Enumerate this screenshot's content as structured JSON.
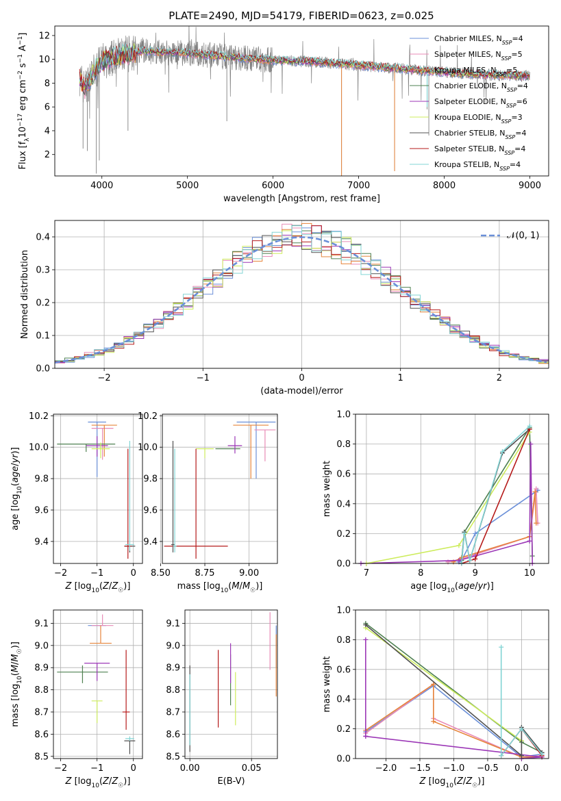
{
  "colors": {
    "Chabrier MILES": "#6a8fd8",
    "Salpeter MILES": "#e88ab6",
    "Kroupa MILES": "#e6843a",
    "Chabrier ELODIE": "#4e8050",
    "Salpeter ELODIE": "#9b36b6",
    "Kroupa ELODIE": "#cdec5c",
    "Chabrier STELIB": "#505050",
    "Salpeter STELIB": "#b51a1a",
    "Kroupa STELIB": "#82d4d4"
  },
  "chart_data": [
    {
      "id": "spectrum",
      "type": "line",
      "title": "PLATE=2490, MJD=54179, FIBERID=0623, z=0.025",
      "xlabel": "wavelength [Angstrom, rest frame]",
      "ylabel": "Flux [f_λ10^{-17} erg cm^{-2} s^{-1} A^{-1}]",
      "xlim": [
        3450,
        9220
      ],
      "ylim": [
        0.2,
        12.8
      ],
      "xticks": [
        4000,
        5000,
        6000,
        7000,
        8000,
        9000
      ],
      "yticks": [
        2,
        4,
        6,
        8,
        10,
        12
      ],
      "legend_position": "upper-right",
      "legend": [
        {
          "name": "Chabrier MILES",
          "label": "Chabrier MILES, N",
          "sub": "SSP",
          "suffix": "=4"
        },
        {
          "name": "Salpeter MILES",
          "label": "Salpeter MILES, N",
          "sub": "SSP",
          "suffix": "=5"
        },
        {
          "name": "Kroupa MILES",
          "label": "Kroupa MILES, N",
          "sub": "SSP",
          "suffix": "=5"
        },
        {
          "name": "Chabrier ELODIE",
          "label": "Chabrier ELODIE, N",
          "sub": "SSP",
          "suffix": "=4"
        },
        {
          "name": "Salpeter ELODIE",
          "label": "Salpeter ELODIE, N",
          "sub": "SSP",
          "suffix": "=6"
        },
        {
          "name": "Kroupa ELODIE",
          "label": "Kroupa ELODIE, N",
          "sub": "SSP",
          "suffix": "=3"
        },
        {
          "name": "Chabrier STELIB",
          "label": "Chabrier STELIB, N",
          "sub": "SSP",
          "suffix": "=4"
        },
        {
          "name": "Salpeter STELIB",
          "label": "Salpeter STELIB, N",
          "sub": "SSP",
          "suffix": "=4"
        },
        {
          "name": "Kroupa STELIB",
          "label": "Kroupa STELIB, N",
          "sub": "SSP",
          "suffix": "=4"
        }
      ],
      "continuum": [
        [
          3740,
          8.5
        ],
        [
          3800,
          7.5
        ],
        [
          3900,
          8.8
        ],
        [
          4000,
          9.8
        ],
        [
          4200,
          10.3
        ],
        [
          4500,
          10.7
        ],
        [
          5000,
          10.5
        ],
        [
          5500,
          10.2
        ],
        [
          6000,
          9.9
        ],
        [
          6500,
          9.8
        ],
        [
          7000,
          9.5
        ],
        [
          7500,
          9.2
        ],
        [
          8000,
          8.9
        ],
        [
          8500,
          8.7
        ],
        [
          9000,
          8.6
        ]
      ],
      "deep_features": [
        [
          3780,
          2.5
        ],
        [
          3830,
          2.3
        ],
        [
          3935,
          0.4
        ],
        [
          3970,
          1.5
        ],
        [
          4305,
          4.0
        ],
        [
          5460,
          4.8
        ],
        [
          6800,
          0.2
        ],
        [
          7420,
          0.6
        ],
        [
          7800,
          5.8
        ],
        [
          7820,
          3.6
        ]
      ]
    },
    {
      "id": "residuals",
      "type": "histogram",
      "xlabel": "(data-model)/error",
      "ylabel": "Normed distribution",
      "xlim": [
        -2.5,
        2.5
      ],
      "ylim": [
        0.0,
        0.45
      ],
      "xticks": [
        -2,
        -1,
        0,
        1,
        2
      ],
      "yticks": [
        0.0,
        0.1,
        0.2,
        0.3,
        0.4
      ],
      "bin_width": 0.1,
      "reference_curve": {
        "label": "𝒩(0, 1)",
        "mean": 0,
        "sigma": 1
      },
      "legend_position": "upper-right",
      "grid": true
    },
    {
      "id": "age-vs-Z",
      "type": "errorbar",
      "xlabel": "Z [log10(Z/Z☉)]",
      "ylabel": "age  [log10(age/yr)]",
      "xlim": [
        -2.2,
        0.25
      ],
      "ylim": [
        9.26,
        10.21
      ],
      "xticks": [
        -2,
        -1,
        0
      ],
      "yticks": [
        9.4,
        9.6,
        9.8,
        10.0,
        10.2
      ],
      "grid": true,
      "points": [
        {
          "series": "Chabrier MILES",
          "x": -1.0,
          "xerr": 0.25,
          "y": 10.16,
          "yerr_lo": 0.35,
          "yerr_hi": 0.0
        },
        {
          "series": "Salpeter MILES",
          "x": -0.85,
          "xerr": 0.3,
          "y": 10.12,
          "yerr_lo": 0.2,
          "yerr_hi": 0.0
        },
        {
          "series": "Kroupa MILES",
          "x": -0.8,
          "xerr": 0.35,
          "y": 10.14,
          "yerr_lo": 0.2,
          "yerr_hi": 0.0
        },
        {
          "series": "Chabrier ELODIE",
          "x": -1.3,
          "xerr": 0.8,
          "y": 10.02,
          "yerr_lo": 0.05,
          "yerr_hi": 0.0
        },
        {
          "series": "Salpeter ELODIE",
          "x": -1.0,
          "xerr": 0.3,
          "y": 10.01,
          "yerr_lo": 0.07,
          "yerr_hi": 0.06
        },
        {
          "series": "Kroupa ELODIE",
          "x": -0.9,
          "xerr": 0.25,
          "y": 9.99,
          "yerr_lo": 0.06,
          "yerr_hi": 0.04
        },
        {
          "series": "Chabrier STELIB",
          "x": -0.1,
          "xerr": 0.15,
          "y": 9.37,
          "yerr_lo": 0.04,
          "yerr_hi": 0.0
        },
        {
          "series": "Salpeter STELIB",
          "x": -0.15,
          "xerr": 0.1,
          "y": 9.37,
          "yerr_lo": 0.08,
          "yerr_hi": 0.62
        },
        {
          "series": "Kroupa STELIB",
          "x": -0.1,
          "xerr": 0.12,
          "y": 9.38,
          "yerr_lo": 0.04,
          "yerr_hi": 0.66
        }
      ]
    },
    {
      "id": "age-vs-mass",
      "type": "errorbar",
      "xlabel": "mass [log10(M/M☉)]",
      "ylabel": "",
      "xlim": [
        8.51,
        9.16
      ],
      "ylim": [
        9.26,
        10.21
      ],
      "xticks": [
        8.5,
        8.75,
        9.0
      ],
      "xticklabels": [
        "8.50",
        "8.75",
        "9.00"
      ],
      "yticks": [
        9.4,
        9.6,
        9.8,
        10.0,
        10.2
      ],
      "grid": true,
      "points": [
        {
          "series": "Chabrier MILES",
          "x": 9.04,
          "xerr": 0.11,
          "y": 10.16,
          "yerr_lo": 0.36,
          "yerr_hi": 0.0
        },
        {
          "series": "Salpeter MILES",
          "x": 9.09,
          "xerr": 0.06,
          "y": 10.11,
          "yerr_lo": 0.2,
          "yerr_hi": 0.0
        },
        {
          "series": "Kroupa MILES",
          "x": 9.01,
          "xerr": 0.1,
          "y": 10.14,
          "yerr_lo": 0.34,
          "yerr_hi": 0.0
        },
        {
          "series": "Chabrier ELODIE",
          "x": 8.88,
          "xerr": 0.07,
          "y": 9.99,
          "yerr_lo": 0.0,
          "yerr_hi": 0.0
        },
        {
          "series": "Salpeter ELODIE",
          "x": 8.92,
          "xerr": 0.04,
          "y": 10.01,
          "yerr_lo": 0.05,
          "yerr_hi": 0.06
        },
        {
          "series": "Kroupa ELODIE",
          "x": 8.75,
          "xerr": 0.05,
          "y": 9.99,
          "yerr_lo": 0.06,
          "yerr_hi": 0.0
        },
        {
          "series": "Chabrier STELIB",
          "x": 8.57,
          "xerr": 0.01,
          "y": 9.38,
          "yerr_lo": 0.05,
          "yerr_hi": 0.66
        },
        {
          "series": "Salpeter STELIB",
          "x": 8.7,
          "xerr": 0.18,
          "y": 9.37,
          "yerr_lo": 0.08,
          "yerr_hi": 0.62
        },
        {
          "series": "Kroupa STELIB",
          "x": 8.58,
          "xerr": 0.01,
          "y": 9.37,
          "yerr_lo": 0.04,
          "yerr_hi": 0.62
        }
      ]
    },
    {
      "id": "weight-vs-age",
      "type": "line",
      "xlabel": "age  [log10(age/yr)]",
      "ylabel": "mass weight",
      "xlim": [
        6.8,
        10.35
      ],
      "ylim": [
        0.0,
        1.0
      ],
      "xticks": [
        7,
        8,
        9,
        10
      ],
      "yticks": [
        0.0,
        0.2,
        0.4,
        0.6,
        0.8,
        1.0
      ],
      "grid": true,
      "series": [
        {
          "name": "Chabrier MILES",
          "points": [
            [
              8.7,
              0.01
            ],
            [
              8.75,
              0.02
            ],
            [
              9.0,
              0.2
            ],
            [
              10.15,
              0.49
            ]
          ]
        },
        {
          "name": "Salpeter MILES",
          "points": [
            [
              8.5,
              0.01
            ],
            [
              8.75,
              0.03
            ],
            [
              10.0,
              0.18
            ],
            [
              10.12,
              0.5
            ],
            [
              10.15,
              0.27
            ]
          ]
        },
        {
          "name": "Kroupa MILES",
          "points": [
            [
              8.6,
              0.01
            ],
            [
              8.75,
              0.04
            ],
            [
              10.0,
              0.18
            ],
            [
              10.1,
              0.48
            ],
            [
              10.12,
              0.27
            ]
          ]
        },
        {
          "name": "Chabrier ELODIE",
          "points": [
            [
              8.75,
              0.02
            ],
            [
              8.8,
              0.21
            ],
            [
              10.0,
              0.91
            ],
            [
              10.05,
              0.05
            ]
          ]
        },
        {
          "name": "Salpeter ELODIE",
          "points": [
            [
              6.9,
              0.0
            ],
            [
              8.7,
              0.02
            ],
            [
              9.0,
              0.05
            ],
            [
              10.0,
              0.15
            ],
            [
              10.02,
              0.8
            ],
            [
              10.05,
              0.0
            ]
          ]
        },
        {
          "name": "Kroupa ELODIE",
          "points": [
            [
              7.0,
              0.0
            ],
            [
              8.7,
              0.12
            ],
            [
              10.0,
              0.88
            ]
          ]
        },
        {
          "name": "Chabrier STELIB",
          "points": [
            [
              8.75,
              0.0
            ],
            [
              8.8,
              0.21
            ],
            [
              8.9,
              0.02
            ],
            [
              9.5,
              0.74
            ],
            [
              10.0,
              0.9
            ]
          ]
        },
        {
          "name": "Salpeter STELIB",
          "points": [
            [
              8.75,
              0.0
            ],
            [
              9.0,
              0.03
            ],
            [
              10.0,
              0.9
            ]
          ]
        },
        {
          "name": "Kroupa STELIB",
          "points": [
            [
              8.75,
              0.0
            ],
            [
              8.8,
              0.2
            ],
            [
              8.9,
              0.02
            ],
            [
              9.5,
              0.75
            ],
            [
              10.0,
              0.92
            ]
          ]
        }
      ]
    },
    {
      "id": "mass-vs-Z",
      "type": "errorbar",
      "xlabel": "Z [log10(Z/Z☉)]",
      "ylabel": "mass [log10(M/M☉)]",
      "xlim": [
        -2.2,
        0.25
      ],
      "ylim": [
        8.49,
        9.16
      ],
      "xticks": [
        -2,
        -1,
        0
      ],
      "yticks": [
        8.5,
        8.6,
        8.7,
        8.8,
        8.9,
        9.0,
        9.1
      ],
      "grid": true,
      "points": [
        {
          "series": "Chabrier MILES",
          "x": -1.0,
          "xerr": 0.25,
          "y": 9.09,
          "yerr_lo": 0.0,
          "yerr_hi": 0.0
        },
        {
          "series": "Salpeter MILES",
          "x": -0.85,
          "xerr": 0.3,
          "y": 9.09,
          "yerr_lo": 0.0,
          "yerr_hi": 0.05
        },
        {
          "series": "Kroupa MILES",
          "x": -0.9,
          "xerr": 0.3,
          "y": 9.01,
          "yerr_lo": 0.0,
          "yerr_hi": 0.08
        },
        {
          "series": "Chabrier ELODIE",
          "x": -1.4,
          "xerr": 0.7,
          "y": 8.88,
          "yerr_lo": 0.05,
          "yerr_hi": 0.03
        },
        {
          "series": "Salpeter ELODIE",
          "x": -1.0,
          "xerr": 0.35,
          "y": 8.92,
          "yerr_lo": 0.08,
          "yerr_hi": 0.0
        },
        {
          "series": "Kroupa ELODIE",
          "x": -1.0,
          "xerr": 0.15,
          "y": 8.75,
          "yerr_lo": 0.1,
          "yerr_hi": 0.0
        },
        {
          "series": "Chabrier STELIB",
          "x": -0.1,
          "xerr": 0.15,
          "y": 8.57,
          "yerr_lo": 0.06,
          "yerr_hi": 0.0
        },
        {
          "series": "Salpeter STELIB",
          "x": -0.2,
          "xerr": 0.1,
          "y": 8.7,
          "yerr_lo": 0.08,
          "yerr_hi": 0.28
        },
        {
          "series": "Kroupa STELIB",
          "x": -0.1,
          "xerr": 0.12,
          "y": 8.58,
          "yerr_lo": 0.01,
          "yerr_hi": 0.01
        }
      ]
    },
    {
      "id": "mass-vs-EBV",
      "type": "errorbar",
      "xlabel": "E(B-V)",
      "ylabel": "",
      "xlim": [
        -0.004,
        0.071
      ],
      "ylim": [
        8.49,
        9.16
      ],
      "xticks": [
        0.0,
        0.05
      ],
      "xticklabels": [
        "0.00",
        "0.05"
      ],
      "yticks": [
        8.5,
        8.6,
        8.7,
        8.8,
        8.9,
        9.0,
        9.1
      ],
      "grid": true,
      "points": [
        {
          "series": "Chabrier MILES",
          "x": 0.07,
          "yerr_from": 8.9,
          "yerr_to": 9.09
        },
        {
          "series": "Salpeter MILES",
          "x": 0.065,
          "yerr_from": 8.89,
          "yerr_to": 9.15
        },
        {
          "series": "Kroupa MILES",
          "x": 0.07,
          "yerr_from": 8.77,
          "yerr_to": 9.05
        },
        {
          "series": "Chabrier ELODIE",
          "x": 0.033,
          "yerr_from": 8.73,
          "yerr_to": 8.96
        },
        {
          "series": "Salpeter ELODIE",
          "x": 0.033,
          "yerr_from": 8.83,
          "yerr_to": 9.01
        },
        {
          "series": "Kroupa ELODIE",
          "x": 0.037,
          "yerr_from": 8.64,
          "yerr_to": 8.88
        },
        {
          "series": "Chabrier STELIB",
          "x": 0.0,
          "yerr_from": 8.52,
          "yerr_to": 8.91
        },
        {
          "series": "Salpeter STELIB",
          "x": 0.023,
          "yerr_from": 8.63,
          "yerr_to": 8.98
        },
        {
          "series": "Kroupa STELIB",
          "x": 0.0,
          "yerr_from": 8.55,
          "yerr_to": 8.87
        }
      ]
    },
    {
      "id": "weight-vs-Z",
      "type": "line",
      "xlabel": "Z [log10(Z/Z☉)]",
      "ylabel": "mass weight",
      "xlim": [
        -2.45,
        0.4
      ],
      "ylim": [
        0.0,
        1.0
      ],
      "xticks": [
        -2.0,
        -1.5,
        -1.0,
        -0.5,
        0.0
      ],
      "xticklabels": [
        "−2.0",
        "−1.5",
        "−1.0",
        "−0.5",
        "0.0"
      ],
      "yticks": [
        0.0,
        0.2,
        0.4,
        0.6,
        0.8,
        1.0
      ],
      "grid": true,
      "series": [
        {
          "name": "Chabrier MILES",
          "points": [
            [
              -2.3,
              0.18
            ],
            [
              -1.3,
              0.49
            ],
            [
              0.0,
              0.01
            ],
            [
              0.3,
              0.03
            ]
          ]
        },
        {
          "name": "Salpeter MILES",
          "points": [
            [
              -2.3,
              0.17
            ],
            [
              -1.3,
              0.5
            ],
            [
              -1.3,
              0.27
            ],
            [
              0.0,
              0.01
            ],
            [
              0.3,
              0.02
            ]
          ]
        },
        {
          "name": "Kroupa MILES",
          "points": [
            [
              -2.3,
              0.19
            ],
            [
              -1.3,
              0.5
            ],
            [
              -1.3,
              0.25
            ],
            [
              0.0,
              0.01
            ],
            [
              0.3,
              0.01
            ]
          ]
        },
        {
          "name": "Chabrier ELODIE",
          "points": [
            [
              -2.3,
              0.91
            ],
            [
              0.0,
              0.11
            ],
            [
              0.3,
              0.04
            ]
          ]
        },
        {
          "name": "Salpeter ELODIE",
          "points": [
            [
              -2.3,
              0.15
            ],
            [
              -2.3,
              0.8
            ],
            [
              -2.3,
              0.15
            ],
            [
              0.3,
              0.01
            ],
            [
              0.0,
              0.0
            ]
          ]
        },
        {
          "name": "Kroupa ELODIE",
          "points": [
            [
              -2.3,
              0.88
            ],
            [
              0.0,
              0.12
            ]
          ]
        },
        {
          "name": "Chabrier STELIB",
          "points": [
            [
              -2.3,
              0.9
            ],
            [
              0.0,
              0.02
            ],
            [
              0.0,
              0.21
            ],
            [
              0.3,
              0.04
            ]
          ]
        },
        {
          "name": "Salpeter STELIB",
          "points": [
            [
              -0.3,
              0.02
            ],
            [
              0.0,
              0.2
            ],
            [
              0.3,
              0.02
            ]
          ]
        },
        {
          "name": "Kroupa STELIB",
          "points": [
            [
              -0.3,
              0.75
            ],
            [
              -0.3,
              0.02
            ],
            [
              0.0,
              0.2
            ],
            [
              0.3,
              0.03
            ]
          ]
        }
      ]
    }
  ]
}
